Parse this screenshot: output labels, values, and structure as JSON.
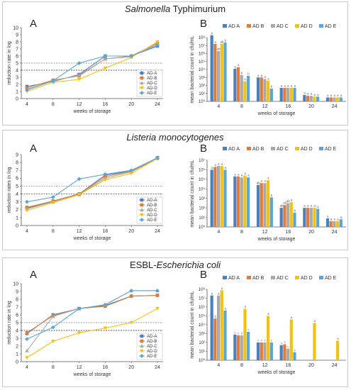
{
  "colors": {
    "A": "#4a7fc1",
    "B": "#e07b39",
    "C": "#a9a9a9",
    "D": "#f2c20e",
    "E": "#5aa5d8"
  },
  "panels": [
    {
      "title_parts": [
        {
          "text": "Salmonella",
          "italic": true
        },
        {
          "text": " Typhimurium",
          "italic": false
        }
      ],
      "line": {
        "label": "A",
        "x": [
          4,
          8,
          12,
          16,
          20,
          24
        ],
        "xlabel": "weeks of storage",
        "ylabel": "reduction rate in log",
        "ylim": [
          0,
          10
        ],
        "yticks": [
          0,
          1,
          2,
          3,
          4,
          5,
          6,
          7,
          8,
          9,
          10
        ],
        "ref_lines": [
          4,
          5
        ],
        "legend": [
          "AD-A",
          "AD-B",
          "AD-C",
          "AD-D",
          "AD-E"
        ],
        "series": [
          {
            "key": "A",
            "values": [
              1.7,
              2.4,
              3.4,
              6.0,
              6.0,
              7.4
            ]
          },
          {
            "key": "B",
            "values": [
              1.5,
              2.6,
              3.2,
              5.6,
              6.0,
              7.8
            ]
          },
          {
            "key": "C",
            "values": [
              1.3,
              2.5,
              3.3,
              5.6,
              5.9,
              7.7
            ]
          },
          {
            "key": "D",
            "values": [
              1.0,
              2.3,
              2.7,
              4.3,
              5.8,
              8.0
            ]
          },
          {
            "key": "E",
            "values": [
              1.2,
              2.5,
              5.0,
              6.0,
              6.0,
              7.5
            ]
          }
        ]
      },
      "bar": {
        "label": "B",
        "categories": [
          "4",
          "8",
          "12",
          "16",
          "20",
          "24"
        ],
        "xlabel": "weeks of storage",
        "ylabel": "mean bacterial count in cfu/mL",
        "ytick_labels": [
          "10⁰",
          "10¹",
          "10²",
          "10³",
          "10⁴",
          "10⁵",
          "10⁶",
          "10⁷",
          "10⁸"
        ],
        "legend": [
          "AD A",
          "AD B",
          "AD C",
          "AD D",
          "AD E"
        ],
        "series": [
          {
            "key": "A",
            "values": [
              8.3,
              4.1,
              3.0,
              1.7,
              0.8,
              0.5
            ]
          },
          {
            "key": "B",
            "values": [
              7.2,
              4.3,
              3.0,
              1.7,
              0.7,
              0.5
            ]
          },
          {
            "key": "C",
            "values": [
              6.3,
              3.3,
              2.8,
              1.7,
              0.7,
              0.5
            ]
          },
          {
            "key": "D",
            "values": [
              7.2,
              2.5,
              2.6,
              1.7,
              0.6,
              0.5
            ]
          },
          {
            "key": "E",
            "values": [
              7.4,
              3.2,
              1.6,
              1.7,
              0.6,
              0.5
            ]
          }
        ],
        "sig": [
          [
            "a",
            "a",
            "ab",
            "ab",
            "b"
          ],
          [
            "a",
            "a",
            "b",
            "b",
            "b"
          ],
          [
            "a",
            "a",
            "a",
            "a",
            "b"
          ],
          [
            "a",
            "a",
            "a",
            "a",
            "a"
          ],
          [
            "a",
            "a",
            "a",
            "a",
            "a"
          ],
          [
            "a",
            "a",
            "a",
            "a",
            "a"
          ]
        ]
      }
    },
    {
      "title_parts": [
        {
          "text": "Listeria monocytogenes",
          "italic": true
        }
      ],
      "line": {
        "label": "A",
        "x": [
          4,
          8,
          12,
          16,
          20,
          24
        ],
        "xlabel": "weeks of storage",
        "ylabel": "reduction rates in log",
        "ylim": [
          0,
          9
        ],
        "yticks": [
          0,
          1,
          2,
          3,
          4,
          5,
          6,
          7,
          8,
          9
        ],
        "ref_lines": [
          4,
          5
        ],
        "legend": [
          "AD-A",
          "AD-B",
          "AD-C",
          "AD-D",
          "AD-E"
        ],
        "series": [
          {
            "key": "A",
            "values": [
              2.2,
              3.1,
              4.0,
              6.4,
              6.9,
              8.6
            ]
          },
          {
            "key": "B",
            "values": [
              2.3,
              3.1,
              4.0,
              6.2,
              6.9,
              8.6
            ]
          },
          {
            "key": "C",
            "values": [
              2.1,
              3.0,
              3.9,
              6.0,
              6.8,
              8.5
            ]
          },
          {
            "key": "D",
            "values": [
              1.9,
              2.9,
              3.9,
              5.8,
              6.6,
              8.5
            ]
          },
          {
            "key": "E",
            "values": [
              3.0,
              3.6,
              5.9,
              6.5,
              7.0,
              8.6
            ]
          }
        ]
      },
      "bar": {
        "label": "B",
        "categories": [
          "4",
          "8",
          "12",
          "16",
          "20",
          "24"
        ],
        "xlabel": "weeks of storage",
        "ylabel": "mean bacterial count in cfu/mL",
        "ytick_labels": [
          "10⁰",
          "10¹",
          "10²",
          "10³",
          "10⁴",
          "10⁵",
          "10⁶",
          "10⁷"
        ],
        "legend": [
          "AD A",
          "AD B",
          "AD C",
          "AD D",
          "AD E"
        ],
        "series": [
          {
            "key": "A",
            "values": [
              6.0,
              5.3,
              4.4,
              2.0,
              2.0,
              0.9
            ]
          },
          {
            "key": "B",
            "values": [
              6.3,
              5.3,
              4.6,
              2.3,
              2.0,
              0.6
            ]
          },
          {
            "key": "C",
            "values": [
              6.4,
              5.2,
              4.6,
              2.5,
              2.0,
              0.6
            ]
          },
          {
            "key": "D",
            "values": [
              6.4,
              5.4,
              4.9,
              2.6,
              2.0,
              0.6
            ]
          },
          {
            "key": "E",
            "values": [
              6.0,
              5.2,
              3.1,
              1.5,
              1.9,
              0.8
            ]
          }
        ],
        "sig": [
          [
            "a",
            "a",
            "a",
            "a",
            "a"
          ],
          [
            "a",
            "a",
            "a",
            "a",
            "a"
          ],
          [
            "ab",
            "a",
            "a",
            "a",
            "b"
          ],
          [
            "ab",
            "ab",
            "ab",
            "a",
            "b"
          ],
          [
            "a",
            "a",
            "a",
            "a",
            "a"
          ],
          [
            "a",
            "a",
            "a",
            "a",
            "a"
          ]
        ]
      }
    },
    {
      "title_parts": [
        {
          "text": "ESBL-",
          "italic": false
        },
        {
          "text": "Escherichia coli",
          "italic": true
        }
      ],
      "line": {
        "label": "A",
        "x": [
          4,
          8,
          12,
          16,
          20,
          24
        ],
        "xlabel": "weeks of storage",
        "ylabel": "reduction rate in log",
        "ylim": [
          0,
          10
        ],
        "yticks": [
          0,
          1,
          2,
          3,
          4,
          5,
          6,
          7,
          8,
          9,
          10
        ],
        "ref_lines": [
          4,
          5
        ],
        "legend": [
          "AD-A",
          "AD-B",
          "AD-C",
          "AD-D",
          "AD-E"
        ],
        "series": [
          {
            "key": "A",
            "values": [
              3.6,
              6.0,
              6.8,
              7.2,
              8.4,
              8.5
            ]
          },
          {
            "key": "B",
            "values": [
              3.7,
              5.9,
              6.8,
              7.1,
              8.4,
              8.5
            ]
          },
          {
            "key": "C",
            "values": [
              1.4,
              5.8,
              6.8,
              7.3,
              9.1,
              9.1
            ]
          },
          {
            "key": "D",
            "values": [
              0.5,
              2.6,
              3.7,
              4.3,
              5.0,
              6.8
            ]
          },
          {
            "key": "E",
            "values": [
              2.9,
              4.4,
              6.8,
              7.3,
              9.1,
              9.1
            ]
          }
        ]
      },
      "bar": {
        "label": "B",
        "categories": [
          "4",
          "8",
          "12",
          "16",
          "20",
          "24"
        ],
        "xlabel": "weeks of storage",
        "ylabel": "mean bacterial count in cfu/mL",
        "ytick_labels": [
          "10⁰",
          "10¹",
          "10²",
          "10³",
          "10⁴",
          "10⁵",
          "10⁶",
          "10⁷",
          "10⁸"
        ],
        "legend": [
          "AD A",
          "AD B",
          "AD C",
          "AD D",
          "AD E"
        ],
        "series": [
          {
            "key": "A",
            "values": [
              7.3,
              2.9,
              2.0,
              1.7,
              0.0,
              0.0
            ]
          },
          {
            "key": "B",
            "values": [
              4.7,
              2.8,
              2.0,
              1.8,
              0.0,
              0.0
            ]
          },
          {
            "key": "C",
            "values": [
              7.3,
              2.8,
              2.0,
              1.3,
              0.0,
              0.0
            ]
          },
          {
            "key": "D",
            "values": [
              7.9,
              5.8,
              5.0,
              4.6,
              4.2,
              2.2
            ]
          },
          {
            "key": "E",
            "values": [
              5.6,
              3.2,
              2.0,
              0.9,
              0.0,
              0.0
            ]
          }
        ],
        "sig": [
          [
            "a",
            "b",
            "a",
            "a",
            "a"
          ],
          [
            "c",
            "c",
            "c",
            "a",
            "c"
          ],
          [
            "c",
            "c",
            "c",
            "a",
            "c"
          ],
          [
            "c",
            "c",
            "c",
            "a",
            "c"
          ],
          [
            "",
            "",
            "",
            "a",
            ""
          ],
          [
            "",
            "",
            "",
            "a",
            ""
          ]
        ]
      }
    }
  ]
}
